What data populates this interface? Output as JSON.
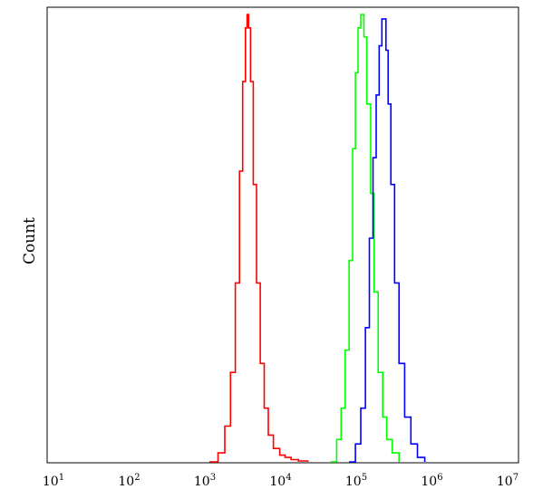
{
  "chart_data": {
    "type": "line",
    "title": "",
    "xlabel": "",
    "ylabel": "Count",
    "x_scale": "log",
    "xlim": [
      10,
      10000000
    ],
    "ylim": [
      0,
      1
    ],
    "grid": false,
    "legend": "none",
    "x_ticks": [
      {
        "base": "10",
        "exp": "1",
        "value": 10
      },
      {
        "base": "10",
        "exp": "2",
        "value": 100
      },
      {
        "base": "10",
        "exp": "3",
        "value": 1000
      },
      {
        "base": "10",
        "exp": "4",
        "value": 10000
      },
      {
        "base": "10",
        "exp": "5",
        "value": 100000
      },
      {
        "base": "10",
        "exp": "6",
        "value": 1000000
      },
      {
        "base": "10",
        "exp": "7",
        "value": 10000000
      }
    ],
    "series": [
      {
        "color": "#ff0000",
        "x": [
          1000,
          1300,
          1600,
          1900,
          2200,
          2500,
          2750,
          3000,
          3150,
          3300,
          3500,
          3800,
          4200,
          4700,
          5300,
          6000,
          7000,
          8500,
          10000,
          12000,
          15000,
          20000
        ],
        "y": [
          0.0,
          0.02,
          0.08,
          0.2,
          0.4,
          0.65,
          0.85,
          0.97,
          1.0,
          0.97,
          0.85,
          0.62,
          0.4,
          0.22,
          0.12,
          0.06,
          0.03,
          0.015,
          0.01,
          0.005,
          0.002,
          0.0
        ]
      },
      {
        "color": "#00ff00",
        "x": [
          40000,
          48000,
          55000,
          62000,
          70000,
          78000,
          85000,
          92000,
          100000,
          110000,
          120000,
          135000,
          150000,
          170000,
          195000,
          220000,
          260000,
          320000
        ],
        "y": [
          0.0,
          0.05,
          0.12,
          0.25,
          0.45,
          0.7,
          0.87,
          0.97,
          1.0,
          0.95,
          0.8,
          0.6,
          0.38,
          0.2,
          0.1,
          0.05,
          0.02,
          0.0
        ]
      },
      {
        "color": "#0000ff",
        "x": [
          70000,
          85000,
          100000,
          115000,
          130000,
          145000,
          160000,
          175000,
          190000,
          200000,
          215000,
          230000,
          250000,
          280000,
          320000,
          380000,
          460000,
          560000,
          700000
        ],
        "y": [
          0.0,
          0.04,
          0.12,
          0.3,
          0.5,
          0.68,
          0.82,
          0.93,
          0.99,
          0.99,
          0.92,
          0.8,
          0.62,
          0.4,
          0.22,
          0.1,
          0.04,
          0.01,
          0.0
        ]
      }
    ]
  }
}
